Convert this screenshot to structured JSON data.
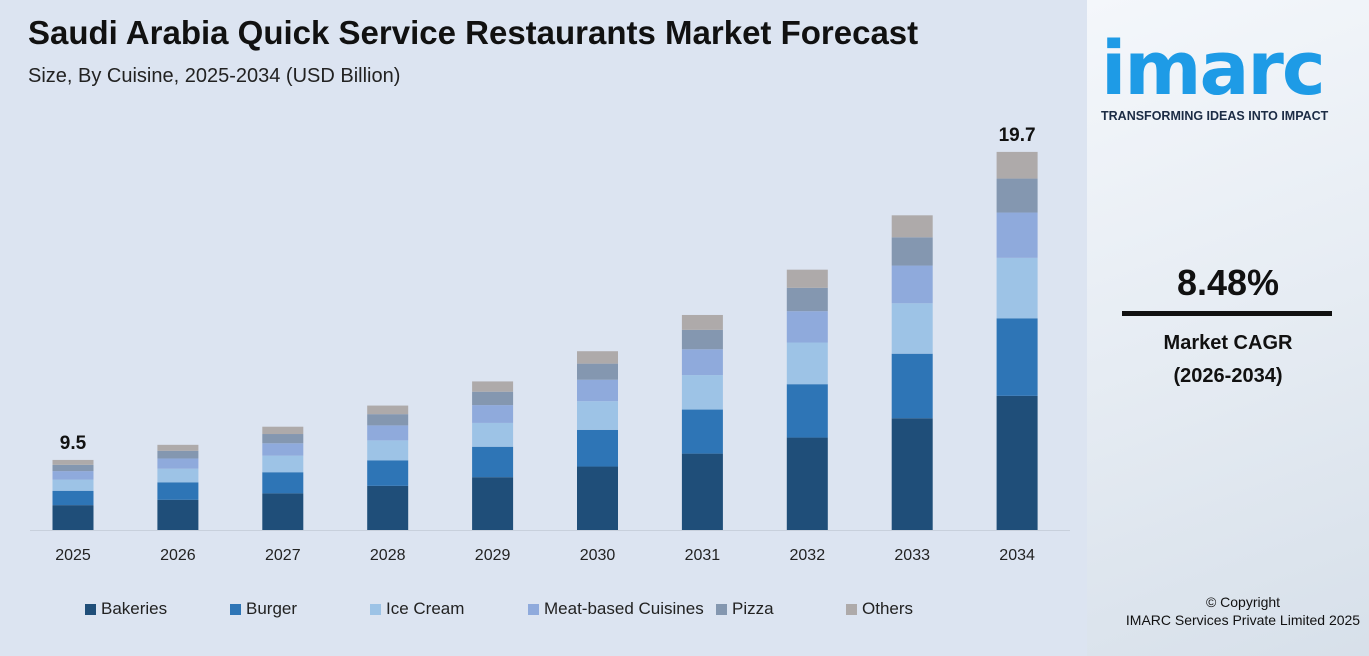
{
  "chart_data": {
    "type": "bar",
    "stacked": true,
    "title": "Saudi Arabia Quick Service Restaurants Market Forecast",
    "subtitle": "Size, By Cuisine, 2025-2034 (USD Billion)",
    "categories": [
      "2025",
      "2026",
      "2027",
      "2028",
      "2029",
      "2030",
      "2031",
      "2032",
      "2033",
      "2034"
    ],
    "series": [
      {
        "name": "Bakeries",
        "color": "#1f4e79",
        "values": [
          3.37,
          3.55,
          3.76,
          4.01,
          4.3,
          4.65,
          5.08,
          5.61,
          6.25,
          6.99
        ]
      },
      {
        "name": "Burger",
        "color": "#2e75b6",
        "values": [
          1.95,
          2.05,
          2.17,
          2.32,
          2.48,
          2.69,
          2.93,
          3.24,
          3.61,
          4.04
        ]
      },
      {
        "name": "Ice Cream",
        "color": "#9dc3e6",
        "values": [
          1.52,
          1.6,
          1.7,
          1.81,
          1.94,
          2.1,
          2.29,
          2.53,
          2.82,
          3.15
        ]
      },
      {
        "name": "Meat-based Cuisines",
        "color": "#8faadc",
        "values": [
          1.14,
          1.2,
          1.27,
          1.36,
          1.45,
          1.57,
          1.72,
          1.9,
          2.11,
          2.36
        ]
      },
      {
        "name": "Pizza",
        "color": "#8497b0",
        "values": [
          0.86,
          0.9,
          0.95,
          1.02,
          1.09,
          1.18,
          1.29,
          1.42,
          1.58,
          1.77
        ]
      },
      {
        "name": "Others",
        "color": "#aeaaaa",
        "values": [
          0.66,
          0.7,
          0.75,
          0.78,
          0.84,
          0.91,
          0.99,
          1.1,
          1.23,
          1.39
        ]
      }
    ],
    "data_labels": {
      "2025": "9.5",
      "2034": "19.7"
    },
    "grid": false,
    "legend": "bottom"
  },
  "side": {
    "logo": "imarc",
    "tagline": "TRANSFORMING IDEAS INTO IMPACT",
    "cagr": "8.48%",
    "cagr_label": "Market CAGR",
    "cagr_period": "(2026-2034)",
    "copyright": "© Copyright",
    "company": "IMARC Services Private Limited 2025"
  }
}
